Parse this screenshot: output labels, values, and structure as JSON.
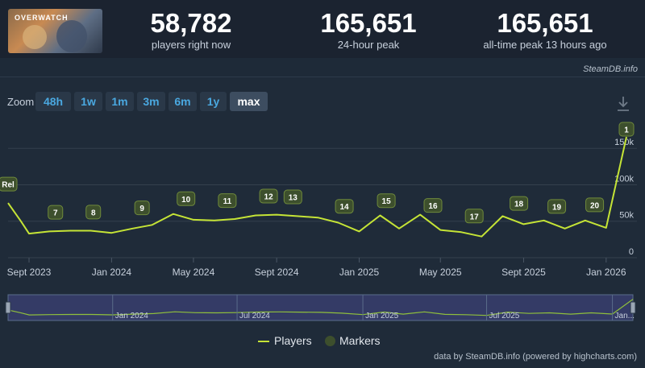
{
  "header": {
    "game_logo_text": "OVERWATCH",
    "stats": [
      {
        "value": "58,782",
        "label": "players right now"
      },
      {
        "value": "165,651",
        "label": "24-hour peak"
      },
      {
        "value": "165,651",
        "label": "all-time peak 13 hours ago"
      }
    ]
  },
  "credit_top": "SteamDB.info",
  "zoom": {
    "label": "Zoom",
    "buttons": [
      "48h",
      "1w",
      "1m",
      "3m",
      "6m",
      "1y",
      "max"
    ],
    "active": "max"
  },
  "legend": {
    "players": "Players",
    "markers": "Markers"
  },
  "credit_bottom": "data by SteamDB.info (powered by highcharts.com)",
  "colors": {
    "line": "#c5e436",
    "marker_fill": "#3d4f2d",
    "marker_border": "#6f8a3c",
    "grid": "#34404d",
    "nav_bg": "#343b66",
    "accent": "#4aa8e0"
  },
  "chart_data": {
    "type": "line",
    "x_type": "date",
    "y_ticks": [
      0,
      50000,
      100000,
      150000
    ],
    "y_tick_labels": [
      "0",
      "50k",
      "100k",
      "150k"
    ],
    "ylim": [
      0,
      190000
    ],
    "x_range": [
      "2023-08-01",
      "2026-01-31"
    ],
    "x_ticks": [
      {
        "date": "2023-09-01",
        "label": "Sept 2023"
      },
      {
        "date": "2024-01-01",
        "label": "Jan 2024"
      },
      {
        "date": "2024-05-01",
        "label": "May 2024"
      },
      {
        "date": "2024-09-01",
        "label": "Sept 2024"
      },
      {
        "date": "2025-01-01",
        "label": "Jan 2025"
      },
      {
        "date": "2025-05-01",
        "label": "May 2025"
      },
      {
        "date": "2025-09-01",
        "label": "Sept 2025"
      },
      {
        "date": "2026-01-01",
        "label": "Jan 2026"
      }
    ],
    "series": [
      {
        "name": "Players",
        "points": [
          [
            "2023-08-01",
            75000
          ],
          [
            "2023-08-20",
            50000
          ],
          [
            "2023-09-01",
            33000
          ],
          [
            "2023-10-01",
            36000
          ],
          [
            "2023-11-01",
            37000
          ],
          [
            "2023-12-01",
            37000
          ],
          [
            "2024-01-01",
            34000
          ],
          [
            "2024-02-01",
            40000
          ],
          [
            "2024-03-01",
            45000
          ],
          [
            "2024-04-01",
            60000
          ],
          [
            "2024-05-01",
            52000
          ],
          [
            "2024-06-01",
            51000
          ],
          [
            "2024-07-01",
            53000
          ],
          [
            "2024-08-01",
            58000
          ],
          [
            "2024-09-01",
            59000
          ],
          [
            "2024-10-01",
            57000
          ],
          [
            "2024-11-01",
            55000
          ],
          [
            "2024-12-01",
            48000
          ],
          [
            "2025-01-01",
            36000
          ],
          [
            "2025-02-01",
            58000
          ],
          [
            "2025-03-01",
            40000
          ],
          [
            "2025-04-01",
            59000
          ],
          [
            "2025-05-01",
            38000
          ],
          [
            "2025-06-01",
            35000
          ],
          [
            "2025-07-01",
            29000
          ],
          [
            "2025-08-01",
            57000
          ],
          [
            "2025-09-01",
            46000
          ],
          [
            "2025-10-01",
            51000
          ],
          [
            "2025-11-01",
            40000
          ],
          [
            "2025-12-01",
            51000
          ],
          [
            "2026-01-01",
            41000
          ],
          [
            "2026-01-31",
            165651
          ]
        ]
      }
    ],
    "markers": [
      {
        "label": "Rel",
        "date": "2023-08-01"
      },
      {
        "label": "7",
        "date": "2023-10-10"
      },
      {
        "label": "8",
        "date": "2023-12-05"
      },
      {
        "label": "9",
        "date": "2024-02-15"
      },
      {
        "label": "10",
        "date": "2024-04-20"
      },
      {
        "label": "11",
        "date": "2024-06-20"
      },
      {
        "label": "12",
        "date": "2024-08-20"
      },
      {
        "label": "13",
        "date": "2024-09-25"
      },
      {
        "label": "14",
        "date": "2024-12-10"
      },
      {
        "label": "15",
        "date": "2025-02-10"
      },
      {
        "label": "16",
        "date": "2025-04-20"
      },
      {
        "label": "17",
        "date": "2025-06-20"
      },
      {
        "label": "18",
        "date": "2025-08-25"
      },
      {
        "label": "19",
        "date": "2025-10-20"
      },
      {
        "label": "20",
        "date": "2025-12-15"
      },
      {
        "label": "1",
        "date": "2026-01-31"
      }
    ],
    "navigator": {
      "labels": [
        {
          "date": "2024-01-01",
          "label": "Jan 2024"
        },
        {
          "date": "2024-07-01",
          "label": "Jul 2024"
        },
        {
          "date": "2025-01-01",
          "label": "Jan 2025"
        },
        {
          "date": "2025-07-01",
          "label": "Jul 2025"
        },
        {
          "date": "2026-01-01",
          "label": "Jan..."
        }
      ]
    },
    "legend_position": "bottom-center",
    "grid": true
  }
}
